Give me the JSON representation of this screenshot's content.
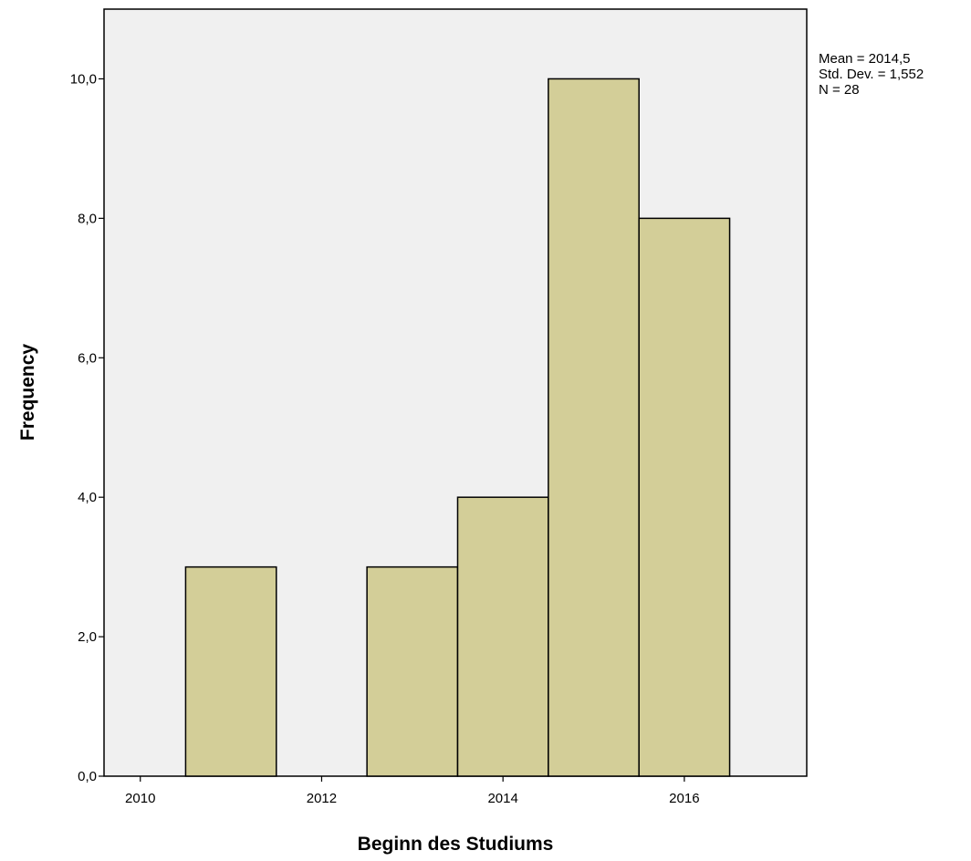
{
  "chart_data": {
    "type": "bar",
    "subtype": "histogram",
    "xlabel": "Beginn des Studiums",
    "ylabel": "Frequency",
    "xlim": [
      2009.6,
      2017.35
    ],
    "ylim": [
      0,
      11
    ],
    "x_ticks": [
      2010,
      2012,
      2014,
      2016
    ],
    "x_tick_labels": [
      "2010",
      "2012",
      "2014",
      "2016"
    ],
    "y_ticks": [
      0,
      2,
      4,
      6,
      8,
      10
    ],
    "y_tick_labels": [
      "0,0",
      "2,0",
      "4,0",
      "6,0",
      "8,0",
      "10,0"
    ],
    "bins": [
      {
        "center": 2011,
        "value": 3
      },
      {
        "center": 2013,
        "value": 3
      },
      {
        "center": 2014,
        "value": 4
      },
      {
        "center": 2015,
        "value": 10
      },
      {
        "center": 2016,
        "value": 8
      }
    ],
    "bin_width": 1,
    "stats": [
      "Mean = 2014,5",
      "Std. Dev. = 1,552",
      "N = 28"
    ],
    "grid": false,
    "legend": "top-right",
    "colors": {
      "bar_fill": "#d3ce98",
      "bar_stroke": "#000000",
      "plot_background": "#f0f0f0",
      "page_background": "#ffffff"
    }
  }
}
